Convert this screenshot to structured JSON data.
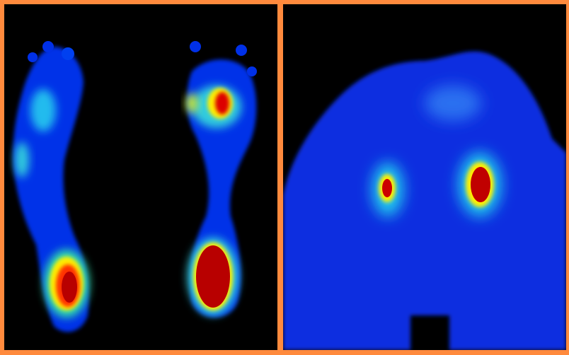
{
  "colors": {
    "frame": "#ff8a3d",
    "background": "#000000",
    "low_pressure": "#0022dd",
    "mid_pressure": "#22ccee",
    "high_mid_pressure": "#ffee00",
    "high_pressure": "#c00000"
  },
  "panels": [
    {
      "content": "plantar-pressure-map-both-feet"
    },
    {
      "content": "seat-pressure-map"
    }
  ]
}
